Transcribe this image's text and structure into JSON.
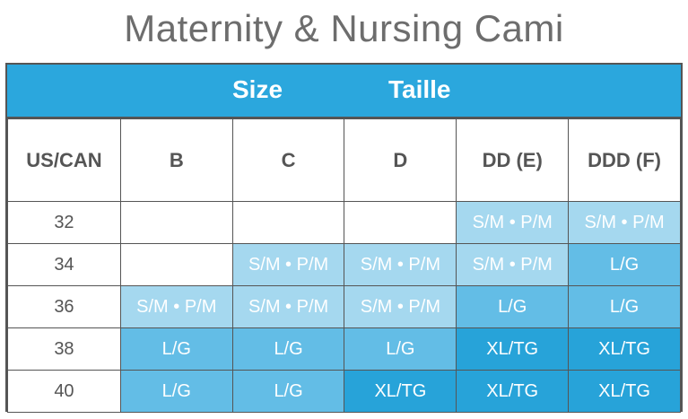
{
  "title": "Maternity & Nursing Cami",
  "header": {
    "size": "Size",
    "taille": "Taille"
  },
  "columns": [
    "US/CAN",
    "B",
    "C",
    "D",
    "DD (E)",
    "DDD (F)"
  ],
  "rows": [
    {
      "band": "32",
      "cells": [
        "",
        "",
        "",
        "S/M • P/M",
        "S/M • P/M"
      ]
    },
    {
      "band": "34",
      "cells": [
        "",
        "S/M • P/M",
        "S/M • P/M",
        "S/M • P/M",
        "L/G"
      ]
    },
    {
      "band": "36",
      "cells": [
        "S/M • P/M",
        "S/M • P/M",
        "S/M • P/M",
        "L/G",
        "L/G"
      ]
    },
    {
      "band": "38",
      "cells": [
        "L/G",
        "L/G",
        "L/G",
        "XL/TG",
        "XL/TG"
      ]
    },
    {
      "band": "40",
      "cells": [
        "L/G",
        "L/G",
        "XL/TG",
        "XL/TG",
        "XL/TG"
      ]
    }
  ],
  "colors": {
    "header_band": "#2ba7dd",
    "S/M • P/M": "#a5d8ef",
    "L/G": "#63bde6",
    "XL/TG": "#27a3d9",
    "empty": "#ffffff"
  }
}
